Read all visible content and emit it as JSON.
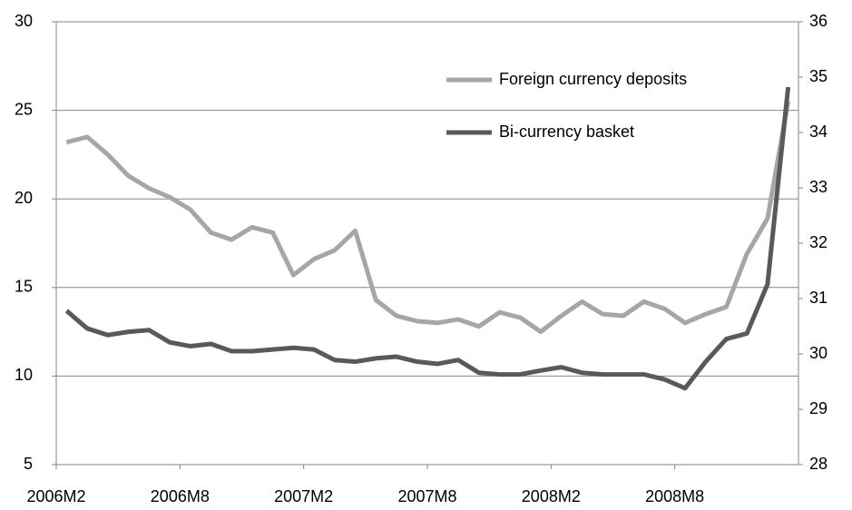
{
  "chart_data": {
    "type": "line",
    "categories": [
      "2006M2",
      null,
      null,
      null,
      null,
      null,
      "2006M8",
      null,
      null,
      null,
      null,
      null,
      "2007M2",
      null,
      null,
      null,
      null,
      null,
      "2007M8",
      null,
      null,
      null,
      null,
      null,
      "2008M2",
      null,
      null,
      null,
      null,
      null,
      "2008M8",
      null,
      null,
      null,
      null,
      null
    ],
    "series": [
      {
        "name": "Foreign currency deposits",
        "color": "#a6a6a6",
        "axis": "y",
        "values": [
          23.2,
          23.5,
          22.5,
          21.3,
          20.6,
          20.1,
          19.4,
          18.1,
          17.7,
          18.4,
          18.1,
          15.7,
          16.6,
          17.1,
          18.2,
          14.3,
          13.4,
          13.1,
          13.0,
          13.2,
          12.8,
          13.6,
          13.3,
          12.5,
          13.4,
          14.2,
          13.5,
          13.4,
          14.2,
          13.8,
          13.0,
          13.5,
          13.9,
          16.9,
          18.9,
          25.5
        ]
      },
      {
        "name": "Bi-currency basket",
        "color": "#595959",
        "axis": "y2",
        "values": [
          30.78,
          30.46,
          30.34,
          30.4,
          30.43,
          30.21,
          30.14,
          30.18,
          30.05,
          30.05,
          30.08,
          30.11,
          30.08,
          29.89,
          29.86,
          29.92,
          29.95,
          29.86,
          29.82,
          29.89,
          29.66,
          29.63,
          29.63,
          29.7,
          29.76,
          29.66,
          29.63,
          29.63,
          29.63,
          29.54,
          29.38,
          29.86,
          30.27,
          30.37,
          31.26,
          34.82
        ]
      }
    ],
    "ylim": [
      5,
      30
    ],
    "yticks": [
      5,
      10,
      15,
      20,
      25,
      30
    ],
    "y2lim": [
      28,
      36
    ],
    "y2ticks": [
      28,
      29,
      30,
      31,
      32,
      33,
      34,
      35,
      36
    ],
    "grid": true,
    "legend": "upper right"
  }
}
